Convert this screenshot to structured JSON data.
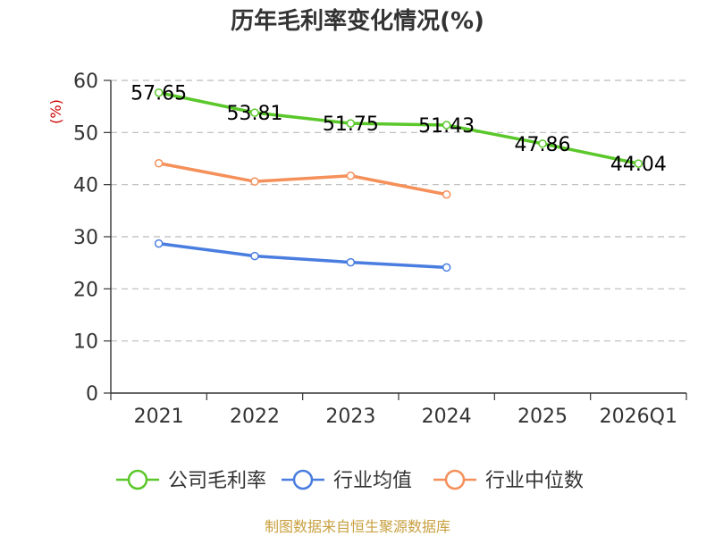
{
  "chart_data": {
    "type": "line",
    "title": "历年毛利率变化情况(%)",
    "ylabel": "(%)",
    "categories": [
      "2021",
      "2022",
      "2023",
      "2024",
      "2025",
      "2026Q1"
    ],
    "ylim": [
      0,
      60
    ],
    "yticks": [
      0,
      10,
      20,
      30,
      40,
      50,
      60
    ],
    "grid": true,
    "legend_position": "bottom",
    "series": [
      {
        "name": "公司毛利率",
        "color": "#5ac72a",
        "values": [
          57.65,
          53.81,
          51.75,
          51.43,
          47.86,
          44.04
        ],
        "labels": [
          "57.65",
          "53.81",
          "51.75",
          "51.43",
          "47.86",
          "44.04"
        ]
      },
      {
        "name": "行业均值",
        "color": "#4a7de0",
        "values": [
          28.7,
          26.3,
          25.1,
          24.1,
          null,
          null
        ]
      },
      {
        "name": "行业中位数",
        "color": "#f5905a",
        "values": [
          44.1,
          40.6,
          41.7,
          38.1,
          null,
          null
        ]
      }
    ]
  },
  "source": "制图数据来自恒生聚源数据库"
}
